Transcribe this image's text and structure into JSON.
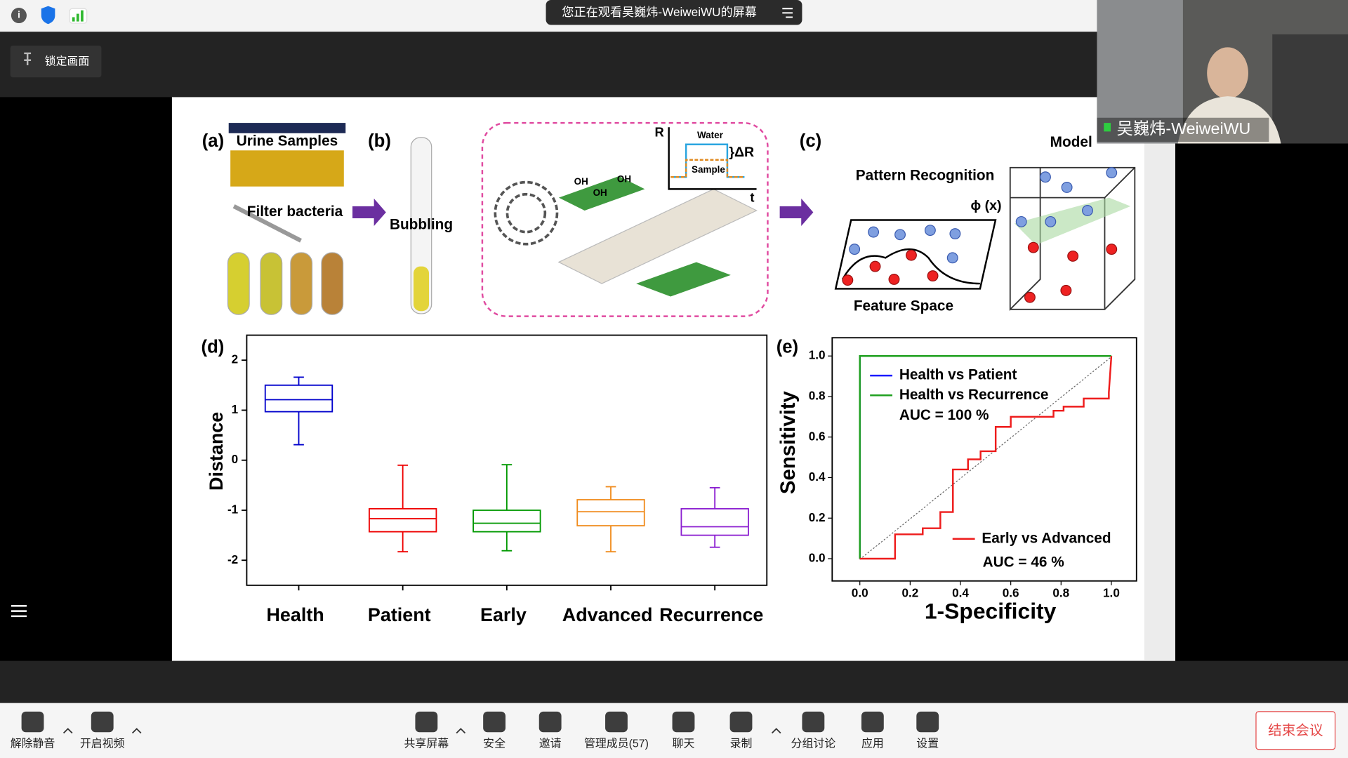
{
  "top_bar": {
    "banner": "您正在观看吴巍炜-WeiweiWU的屏幕"
  },
  "lock_button": "锁定画面",
  "video": {
    "name": "吴巍炜-WeiweiWU"
  },
  "slide": {
    "panel_a": {
      "label": "(a)",
      "urine": "Urine Samples",
      "filter": "Filter bacteria"
    },
    "panel_b": {
      "label": "(b)",
      "bubbling": "Bubbling",
      "r_axis": "R",
      "t_axis": "t",
      "water": "Water",
      "sample": "Sample",
      "delta": "}ΔR",
      "oh": [
        "OH",
        "OH",
        "OH"
      ]
    },
    "panel_c": {
      "label": "(c)",
      "model": "Model",
      "pattern": "Pattern Recognition",
      "phi": "ϕ (x)",
      "feature": "Feature Space"
    },
    "panel_d": {
      "label": "(d)",
      "type": "box",
      "ylabel": "Distance",
      "categories": [
        "Health",
        "Patient",
        "Early",
        "Advanced",
        "Recurrence"
      ],
      "colors": [
        "#0000cc",
        "#ee0000",
        "#009900",
        "#f08c1e",
        "#8b1fd0"
      ],
      "low": [
        0.31,
        -1.83,
        -1.81,
        -1.83,
        -1.74
      ],
      "q1": [
        0.97,
        -1.43,
        -1.43,
        -1.31,
        -1.5
      ],
      "median": [
        1.21,
        -1.17,
        -1.26,
        -1.03,
        -1.33
      ],
      "q3": [
        1.5,
        -0.97,
        -1.0,
        -0.79,
        -0.97
      ],
      "high": [
        1.66,
        -0.1,
        -0.09,
        -0.53,
        -0.55
      ],
      "ylim": [
        -2.5,
        2.5
      ],
      "yticks": [
        2,
        1,
        0,
        -1,
        -2
      ]
    },
    "panel_e": {
      "label": "(e)",
      "type": "line",
      "xlabel": "1-Specificity",
      "ylabel": "Sensitivity",
      "xlim": [
        -0.11,
        1.1
      ],
      "ylim": [
        -0.11,
        1.09
      ],
      "xticks": [
        {
          "value": 0,
          "label": "0.0"
        },
        {
          "value": 0.2,
          "label": "0.2"
        },
        {
          "value": 0.4,
          "label": "0.4"
        },
        {
          "value": 0.6,
          "label": "0.6"
        },
        {
          "value": 0.8,
          "label": "0.8"
        },
        {
          "value": 1,
          "label": "1.0"
        }
      ],
      "yticks": [
        {
          "value": 0,
          "label": "0.0"
        },
        {
          "value": 0.2,
          "label": "0.2"
        },
        {
          "value": 0.4,
          "label": "0.4"
        },
        {
          "value": 0.6,
          "label": "0.6"
        },
        {
          "value": 0.8,
          "label": "0.8"
        },
        {
          "value": 1,
          "label": "1.0"
        }
      ],
      "series": [
        {
          "name": "Health vs Patient",
          "color": "#1a1aff",
          "x": [
            0,
            0,
            1
          ],
          "y": [
            0,
            1,
            1
          ]
        },
        {
          "name": "Health vs Recurrence",
          "color": "#1fa01f",
          "x": [
            0,
            0,
            1
          ],
          "y": [
            0,
            1,
            1
          ]
        },
        {
          "name": "Early vs Advanced",
          "color": "#ee1c1c",
          "x": [
            0,
            0.14,
            0.14,
            0.25,
            0.25,
            0.32,
            0.32,
            0.37,
            0.37,
            0.43,
            0.43,
            0.48,
            0.48,
            0.54,
            0.54,
            0.6,
            0.6,
            0.77,
            0.77,
            0.81,
            0.81,
            0.89,
            0.89,
            0.99,
            0.99,
            1
          ],
          "y": [
            0,
            0,
            0.12,
            0.12,
            0.15,
            0.15,
            0.23,
            0.23,
            0.44,
            0.44,
            0.49,
            0.49,
            0.53,
            0.53,
            0.65,
            0.65,
            0.7,
            0.7,
            0.73,
            0.73,
            0.75,
            0.75,
            0.79,
            0.79,
            0.82,
            1
          ]
        }
      ],
      "annotations": [
        "AUC = 100 %",
        "AUC = 46 %"
      ]
    }
  },
  "toolbar": {
    "items": [
      "解除静音",
      "开启视频",
      "共享屏幕",
      "安全",
      "邀请",
      "管理成员(57)",
      "聊天",
      "录制",
      "分组讨论",
      "应用",
      "设置"
    ],
    "end": "结束会议"
  }
}
